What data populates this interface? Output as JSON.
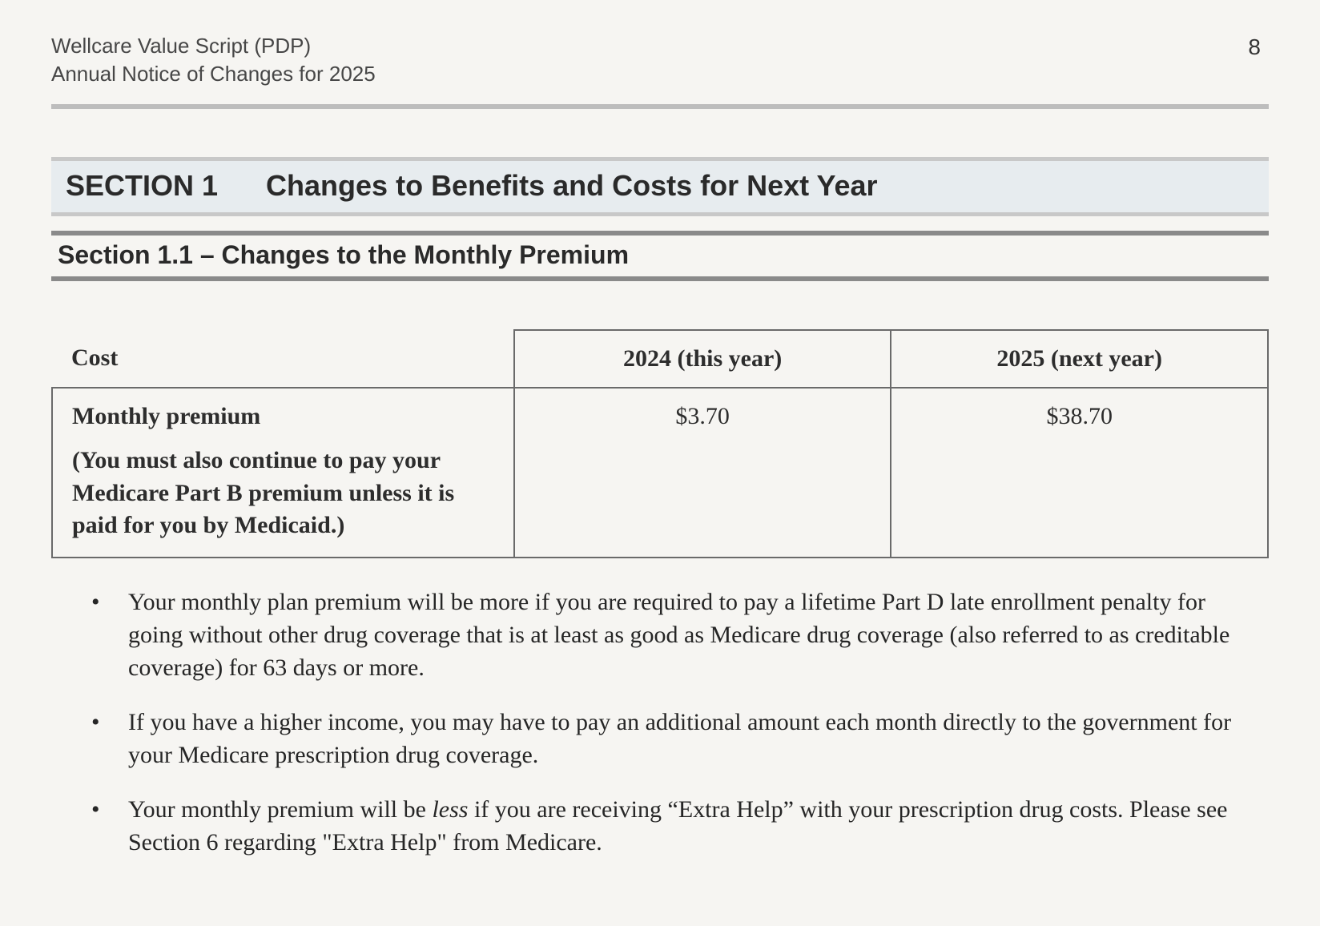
{
  "header": {
    "line1": "Wellcare Value Script (PDP)",
    "line2": "Annual Notice of Changes for 2025",
    "page_number": "8"
  },
  "section_band": {
    "label": "SECTION 1",
    "title": "Changes to Benefits and Costs for Next Year"
  },
  "subsection": {
    "text": "Section 1.1  –  Changes to the Monthly Premium"
  },
  "table": {
    "columns": {
      "cost": "Cost",
      "year_current": "2024 (this year)",
      "year_next": "2025 (next year)"
    },
    "row": {
      "label": "Monthly premium",
      "note": "(You must also continue to pay your Medicare Part B premium unless it is paid for you by Medicaid.)",
      "value_current": "$3.70",
      "value_next": "$38.70"
    }
  },
  "notes": {
    "item1": "Your monthly plan premium will be more if you are required to pay a lifetime Part D late enrollment penalty for going without other drug coverage that is at least as good as Medicare drug coverage (also referred to as creditable coverage) for 63 days or more.",
    "item2": "If you have a higher income, you may have to pay an additional amount each month directly to the government for your Medicare prescription drug coverage.",
    "item3_pre": "Your monthly premium will be ",
    "item3_em": "less",
    "item3_post": " if you are receiving “Extra Help” with your prescription drug costs. Please see Section 6 regarding \"Extra Help\" from Medicare."
  },
  "style": {
    "page_bg": "#f6f5f2",
    "band_bg": "#e7ecef",
    "band_border": "#c8c8c8",
    "sub_border": "#8a8a8a",
    "hr_color": "#bdbdbd",
    "text_color": "#2d2d2d",
    "header_text_color": "#474747",
    "table_border": "#6a6a6a",
    "body_fontsize_pt": 22,
    "heading_fontsize_pt": 27,
    "subheading_fontsize_pt": 24
  }
}
